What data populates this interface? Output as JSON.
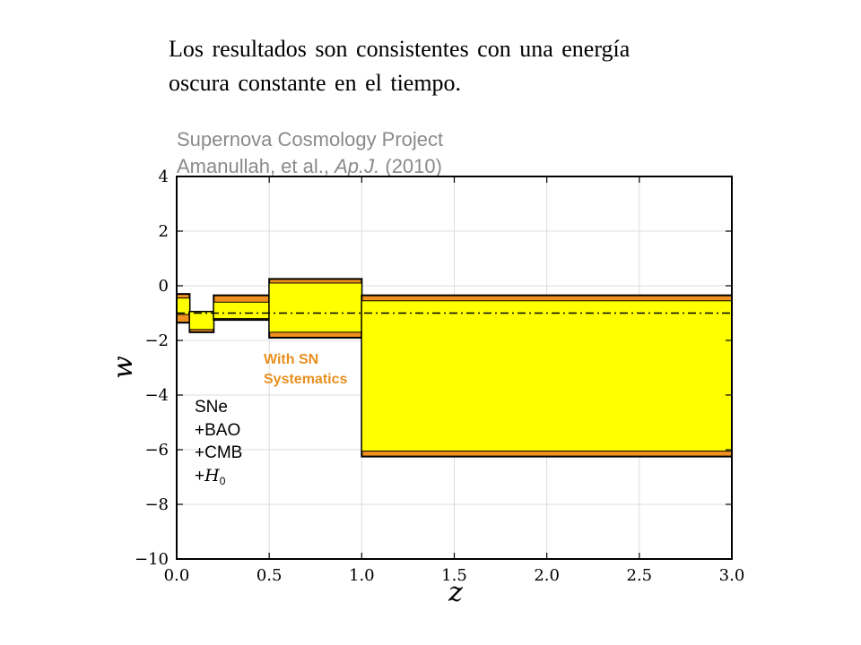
{
  "slide": {
    "text_line1": "Los resultados son consistentes con una energía",
    "text_line2": "oscura constante en el tiempo."
  },
  "chart_data": {
    "type": "area",
    "title": "Supernova Cosmology Project",
    "subtitle": "Amanullah, et al., Ap.J. (2010)",
    "xlabel": "z",
    "ylabel": "w",
    "xlim": [
      0.0,
      3.0
    ],
    "ylim": [
      -10,
      4
    ],
    "xticks": [
      "0.0",
      "0.5",
      "1.0",
      "1.5",
      "2.0",
      "2.5",
      "3.0"
    ],
    "yticks": [
      "4",
      "2",
      "0",
      "−2",
      "−4",
      "−6",
      "−8",
      "−10"
    ],
    "grid": true,
    "reference_line": {
      "y": -1,
      "style": "dash-dot"
    },
    "bins": [
      {
        "z_min": 0.0,
        "z_max": 0.07,
        "stat_low": -1.05,
        "stat_high": -0.45,
        "sys_low": -1.35,
        "sys_high": -0.3
      },
      {
        "z_min": 0.07,
        "z_max": 0.2,
        "stat_low": -1.6,
        "stat_high": -0.95,
        "sys_low": -1.7,
        "sys_high": -0.95
      },
      {
        "z_min": 0.2,
        "z_max": 0.5,
        "stat_low": -1.2,
        "stat_high": -0.6,
        "sys_low": -1.25,
        "sys_high": -0.35
      },
      {
        "z_min": 0.5,
        "z_max": 1.0,
        "stat_low": -1.7,
        "stat_high": 0.1,
        "sys_low": -1.9,
        "sys_high": 0.25
      },
      {
        "z_min": 1.0,
        "z_max": 3.0,
        "stat_low": -6.05,
        "stat_high": -0.55,
        "sys_low": -6.25,
        "sys_high": -0.35
      }
    ],
    "series": [
      {
        "name": "With SN Systematics",
        "color": "#f0901e"
      },
      {
        "color": "#ffff00"
      }
    ],
    "annotations": {
      "systematics_line1": "With SN",
      "systematics_line2": "Systematics",
      "probes": [
        "SNe",
        "+BAO",
        "+CMB",
        "+H0"
      ],
      "probe_h0_prefix": "+",
      "probe_h0_var": "H",
      "probe_h0_sub": "0"
    }
  }
}
